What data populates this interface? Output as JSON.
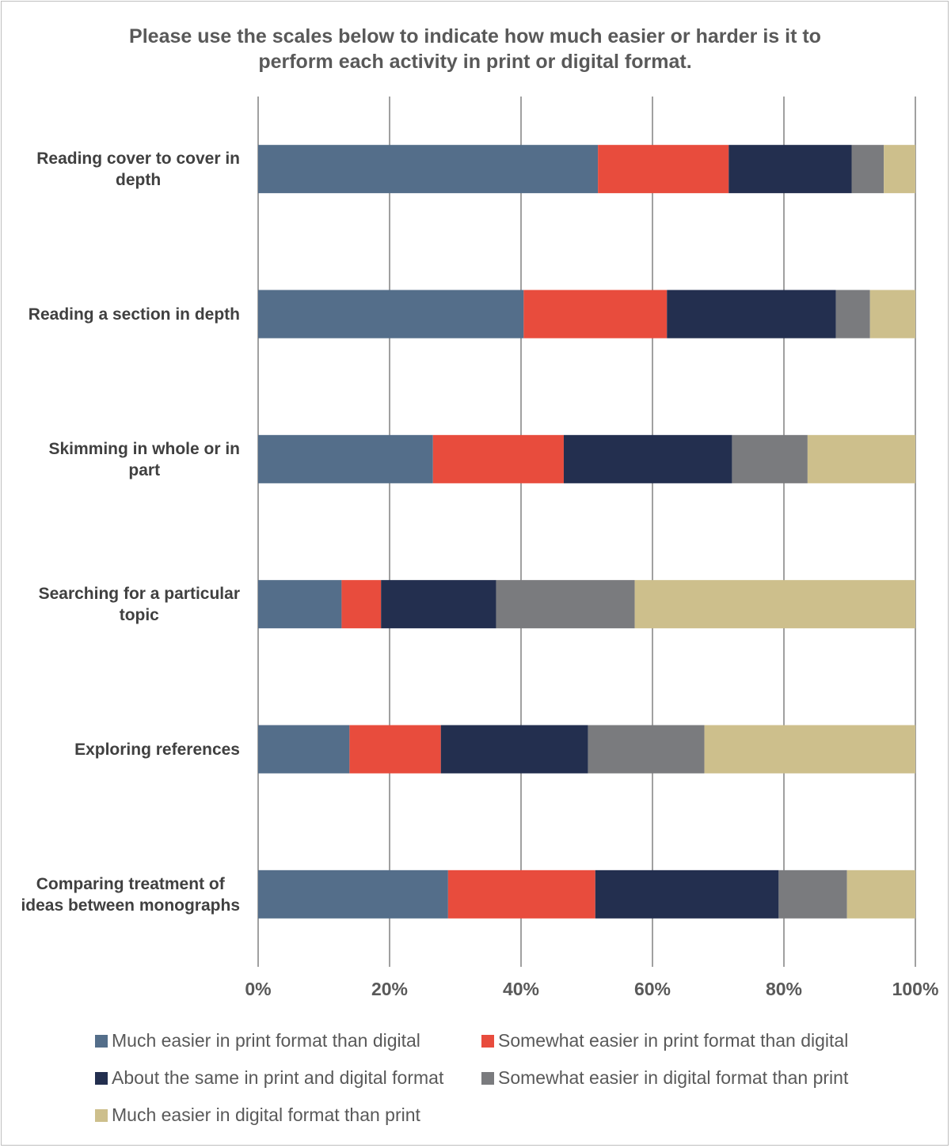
{
  "chart_data": {
    "type": "bar",
    "orientation": "horizontal",
    "stacked": true,
    "title": [
      "Please use the scales below to indicate how much easier or harder is it to",
      "perform each activity in print or digital format."
    ],
    "categories": [
      [
        "Reading cover to cover in",
        "depth"
      ],
      [
        "Reading a section in depth"
      ],
      [
        "Skimming in whole or in",
        "part"
      ],
      [
        "Searching for a particular",
        "topic"
      ],
      [
        "Exploring references"
      ],
      [
        "Comparing treatment of",
        "ideas between monographs"
      ]
    ],
    "series": [
      {
        "name": "Much easier in print format than digital",
        "color": "#546e8a",
        "values": [
          51.7,
          40.4,
          26.6,
          12.7,
          13.9,
          28.9
        ]
      },
      {
        "name": "Somewhat easier in print format than digital",
        "color": "#e84c3d",
        "values": [
          19.9,
          21.8,
          19.9,
          6.0,
          13.9,
          22.4
        ]
      },
      {
        "name": "About the same in print and digital format",
        "color": "#232f4f",
        "values": [
          18.7,
          25.7,
          25.6,
          17.5,
          22.4,
          27.9
        ]
      },
      {
        "name": "Somewhat easier in digital format than print",
        "color": "#7a7b7e",
        "values": [
          4.9,
          5.2,
          11.5,
          21.1,
          17.7,
          10.4
        ]
      },
      {
        "name": "Much easier in digital format than print",
        "color": "#cdbf8c",
        "values": [
          4.8,
          6.9,
          16.4,
          42.7,
          32.1,
          10.4
        ]
      }
    ],
    "xlim": [
      0,
      100
    ],
    "xticks": [
      "0%",
      "20%",
      "40%",
      "60%",
      "80%",
      "100%"
    ],
    "xtick_values": [
      0,
      20,
      40,
      60,
      80,
      100
    ],
    "grid": true,
    "legend_position": "bottom"
  }
}
